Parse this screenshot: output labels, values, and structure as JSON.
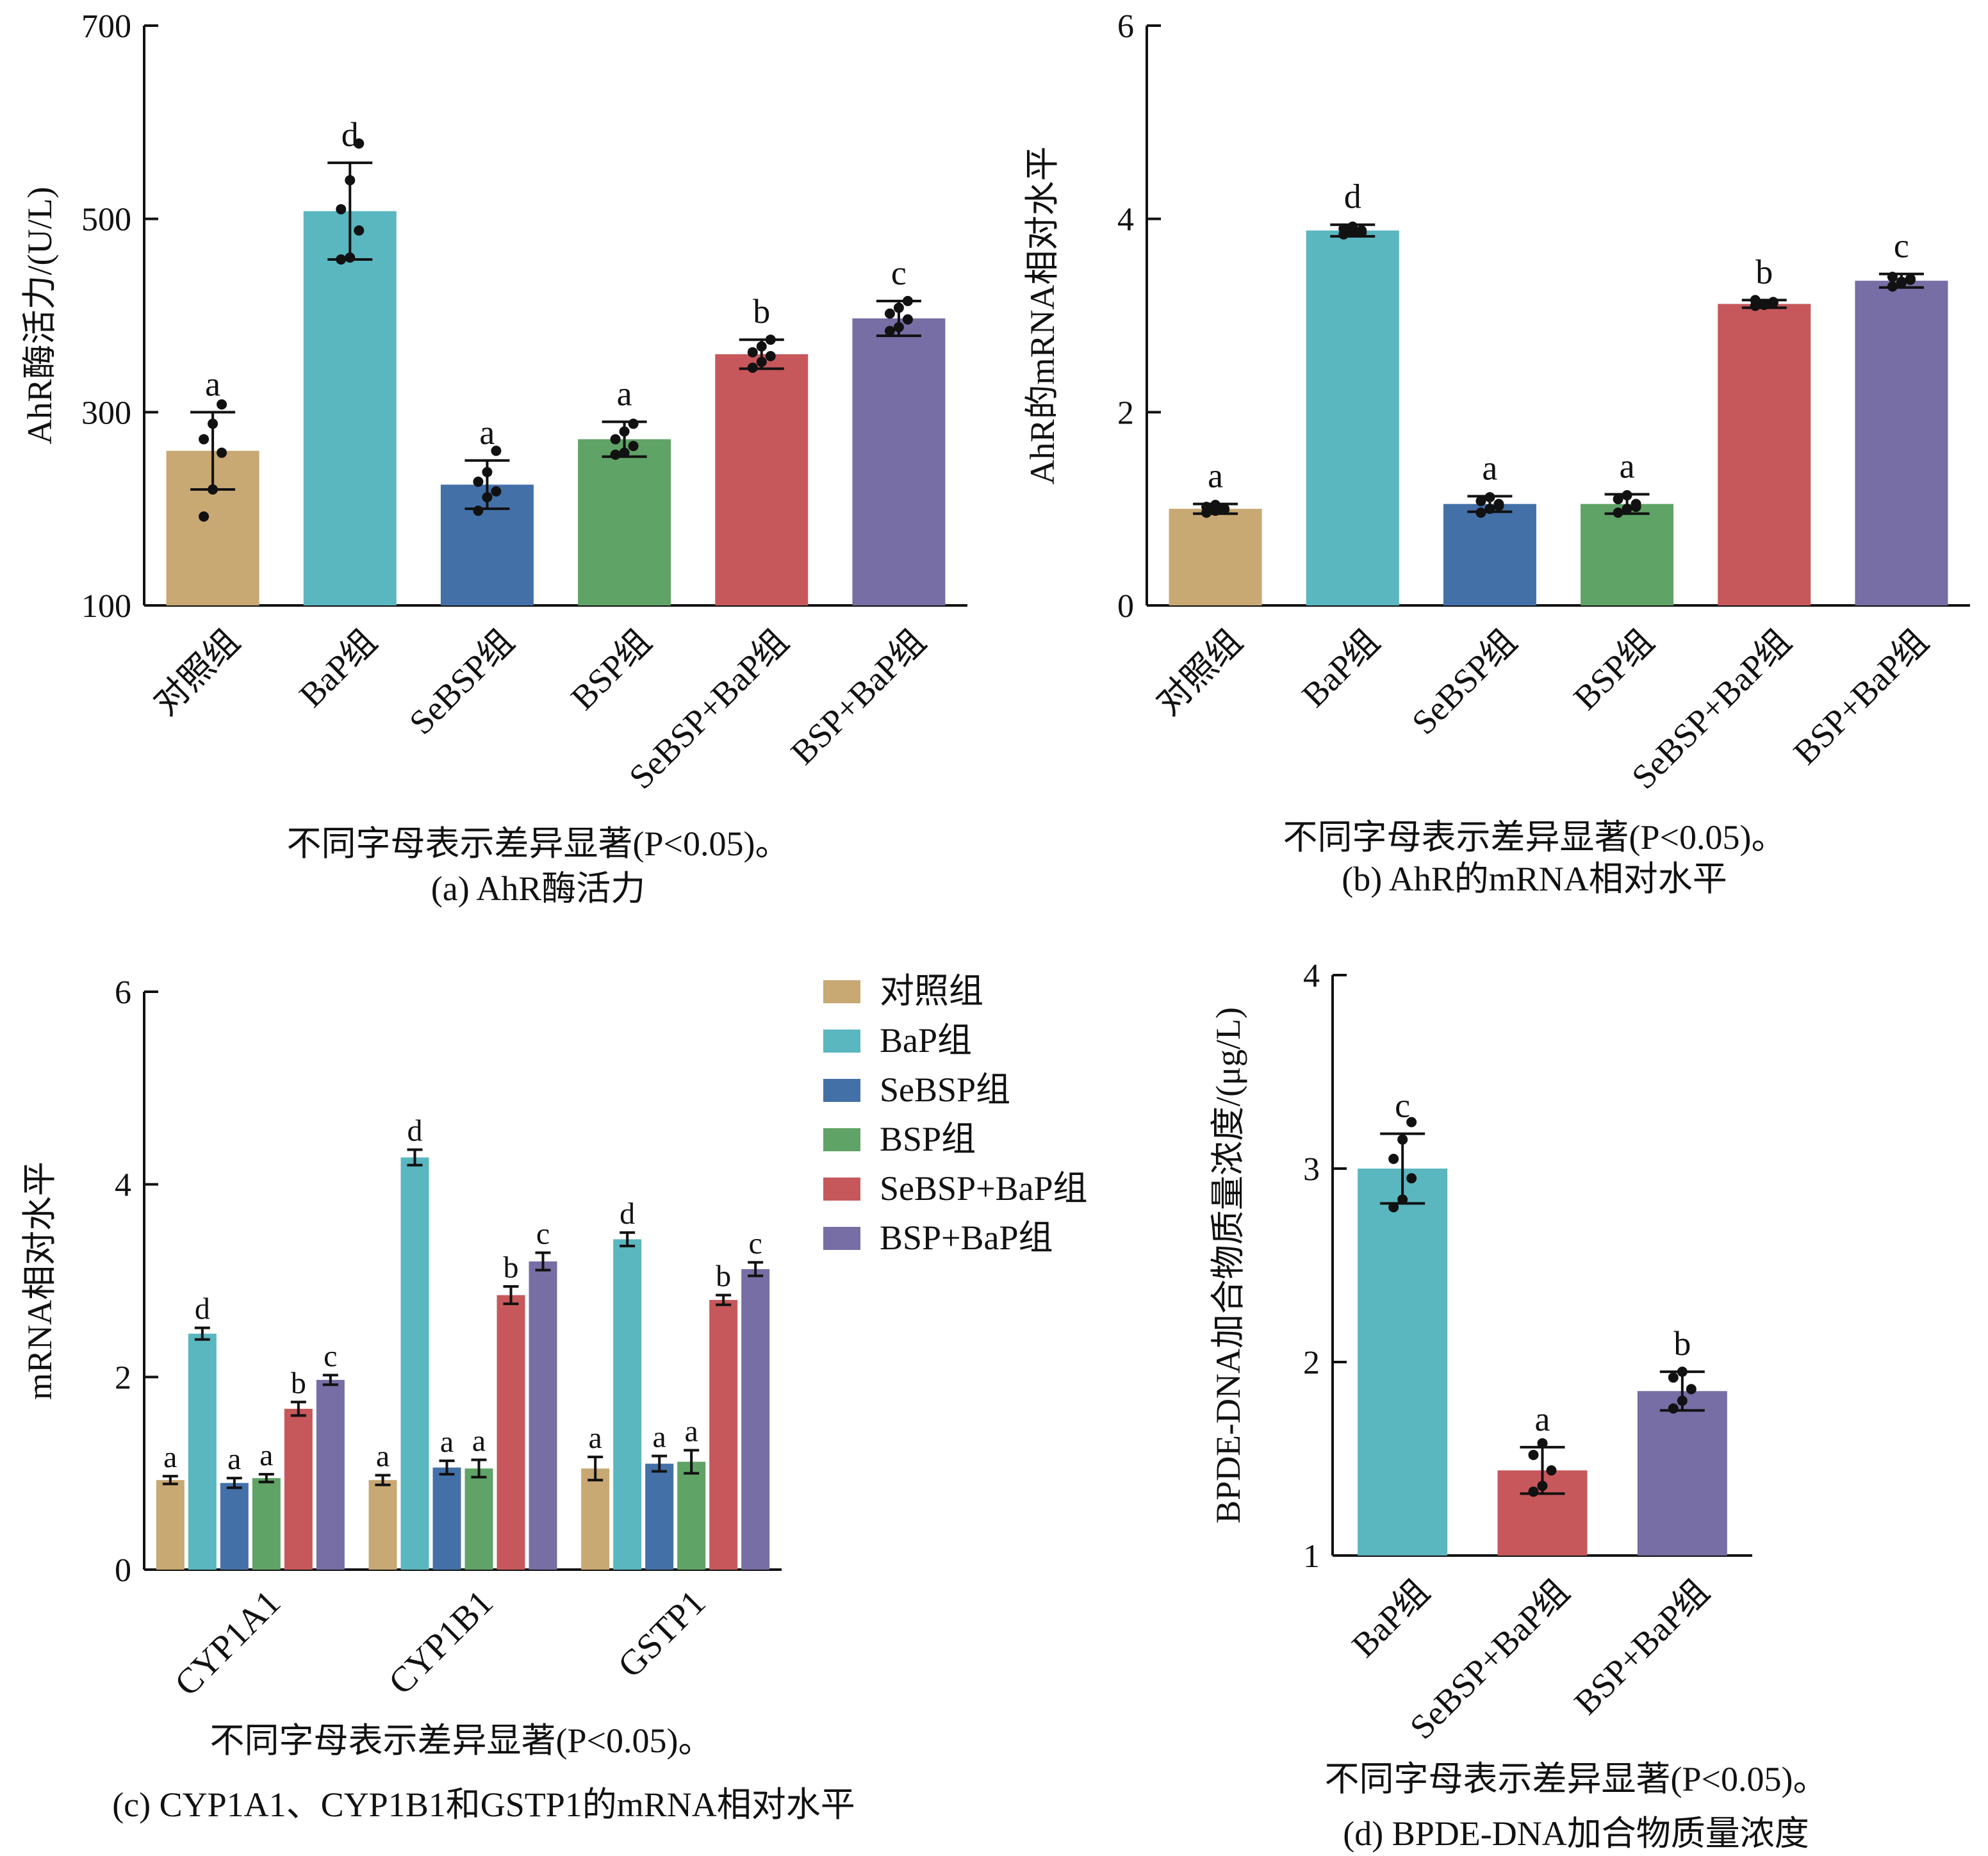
{
  "colors": {
    "对照组": "#c8a873",
    "BaP组": "#5ab6bf",
    "SeBSP组": "#4470a8",
    "BSP组": "#5fa366",
    "SeBSP+BaP组": "#c6585b",
    "BSP+BaP组": "#766ea4"
  },
  "legend": {
    "items": [
      "对照组",
      "BaP组",
      "SeBSP组",
      "BSP组",
      "SeBSP+BaP组",
      "BSP+BaP组"
    ]
  },
  "chart_data": [
    {
      "id": "a",
      "type": "bar",
      "ylabel": "AhR酶活力/(U/L)",
      "ylim": [
        100,
        700
      ],
      "yticks": [
        100,
        300,
        500,
        700
      ],
      "categories": [
        "对照组",
        "BaP组",
        "SeBSP组",
        "BSP组",
        "SeBSP+BaP组",
        "BSP+BaP组"
      ],
      "values": [
        260,
        508,
        225,
        272,
        360,
        397
      ],
      "errors": [
        40,
        50,
        25,
        18,
        15,
        18
      ],
      "letters": [
        "a",
        "d",
        "a",
        "a",
        "b",
        "c"
      ],
      "points": [
        [
          192,
          220,
          258,
          272,
          288,
          308
        ],
        [
          458,
          460,
          488,
          510,
          540,
          578
        ],
        [
          198,
          212,
          218,
          228,
          238,
          260
        ],
        [
          256,
          258,
          265,
          272,
          280,
          288
        ],
        [
          346,
          352,
          358,
          362,
          368,
          375
        ],
        [
          384,
          388,
          396,
          402,
          408,
          415
        ]
      ],
      "footnote": "不同字母表示差异显著(P<0.05)。",
      "caption": "(a) AhR酶活力"
    },
    {
      "id": "b",
      "type": "bar",
      "ylabel": "AhR的mRNA相对水平",
      "ylim": [
        0,
        6
      ],
      "yticks": [
        0,
        2,
        4,
        6
      ],
      "categories": [
        "对照组",
        "BaP组",
        "SeBSP组",
        "BSP组",
        "SeBSP+BaP组",
        "BSP+BaP组"
      ],
      "values": [
        1.0,
        3.88,
        1.05,
        1.05,
        3.12,
        3.36
      ],
      "errors": [
        0.05,
        0.06,
        0.08,
        0.1,
        0.04,
        0.07
      ],
      "letters": [
        "a",
        "d",
        "a",
        "a",
        "b",
        "c"
      ],
      "points": [
        [
          0.96,
          0.98,
          1.0,
          1.02,
          1.04,
          0.99
        ],
        [
          3.84,
          3.86,
          3.88,
          3.9,
          3.92,
          3.86
        ],
        [
          0.96,
          1.0,
          1.05,
          1.08,
          1.12,
          1.03
        ],
        [
          0.96,
          1.0,
          1.05,
          1.1,
          1.14,
          1.02
        ],
        [
          3.1,
          3.12,
          3.14,
          3.16,
          3.11,
          3.13
        ],
        [
          3.3,
          3.34,
          3.38,
          3.4,
          3.35,
          3.37
        ]
      ],
      "footnote": "不同字母表示差异显著(P<0.05)。",
      "caption": "(b) AhR的mRNA相对水平"
    },
    {
      "id": "c",
      "type": "bar",
      "ylabel": "mRNA相对水平",
      "ylim": [
        0,
        6
      ],
      "yticks": [
        0,
        2,
        4,
        6
      ],
      "categories": [
        "CYP1A1",
        "CYP1B1",
        "GSTP1"
      ],
      "series": [
        {
          "name": "对照组",
          "values": [
            0.93,
            0.93,
            1.05
          ],
          "errors": [
            0.04,
            0.05,
            0.12
          ],
          "letters": [
            "a",
            "a",
            "a"
          ]
        },
        {
          "name": "BaP组",
          "values": [
            2.45,
            4.28,
            3.43
          ],
          "errors": [
            0.06,
            0.08,
            0.07
          ],
          "letters": [
            "d",
            "d",
            "d"
          ]
        },
        {
          "name": "SeBSP组",
          "values": [
            0.9,
            1.06,
            1.1
          ],
          "errors": [
            0.05,
            0.07,
            0.08
          ],
          "letters": [
            "a",
            "a",
            "a"
          ]
        },
        {
          "name": "BSP组",
          "values": [
            0.95,
            1.05,
            1.12
          ],
          "errors": [
            0.04,
            0.09,
            0.12
          ],
          "letters": [
            "a",
            "a",
            "a"
          ]
        },
        {
          "name": "SeBSP+BaP组",
          "values": [
            1.67,
            2.85,
            2.8
          ],
          "errors": [
            0.07,
            0.09,
            0.05
          ],
          "letters": [
            "b",
            "b",
            "b"
          ]
        },
        {
          "name": "BSP+BaP组",
          "values": [
            1.97,
            3.2,
            3.12
          ],
          "errors": [
            0.05,
            0.09,
            0.07
          ],
          "letters": [
            "c",
            "c",
            "c"
          ]
        }
      ],
      "footnote": "不同字母表示差异显著(P<0.05)。",
      "caption": "(c) CYP1A1、CYP1B1和GSTP1的mRNA相对水平"
    },
    {
      "id": "d",
      "type": "bar",
      "ylabel": "BPDE-DNA加合物质量浓度/(μg/L)",
      "ylim": [
        1,
        4
      ],
      "yticks": [
        1,
        2,
        3,
        4
      ],
      "categories": [
        "BaP组",
        "SeBSP+BaP组",
        "BSP+BaP组"
      ],
      "values": [
        3.0,
        1.44,
        1.85
      ],
      "errors": [
        0.18,
        0.12,
        0.1
      ],
      "letters": [
        "c",
        "a",
        "b"
      ],
      "points": [
        [
          2.8,
          2.84,
          2.95,
          3.05,
          3.15,
          3.24
        ],
        [
          1.33,
          1.36,
          1.44,
          1.52,
          1.58
        ],
        [
          1.76,
          1.8,
          1.86,
          1.92,
          1.95
        ]
      ],
      "footnote": "不同字母表示差异显著(P<0.05)。",
      "caption": "(d) BPDE-DNA加合物质量浓度"
    }
  ]
}
